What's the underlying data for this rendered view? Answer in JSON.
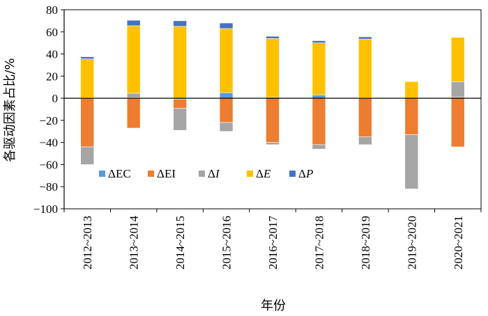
{
  "chart_data": {
    "type": "bar",
    "stacked": true,
    "xlabel": "年份",
    "ylabel": "各驱动因素占比/%",
    "ylim": [
      -100,
      80
    ],
    "yticks": [
      -100,
      -80,
      -60,
      -40,
      -20,
      0,
      20,
      40,
      60,
      80
    ],
    "grid": false,
    "legend_position": "lower-left",
    "categories": [
      "2012~2013",
      "2013~2014",
      "2014~2015",
      "2015~2016",
      "2016~2017",
      "2017~2018",
      "2018~2019",
      "2019~2020",
      "2020~2021"
    ],
    "series": [
      {
        "name": "ΔEC",
        "prefix": "Δ",
        "suffix": "EC",
        "italic": false,
        "color": "#5b9bd5",
        "values": [
          0.5,
          0.5,
          -1,
          5,
          1,
          3,
          0.5,
          0,
          1
        ]
      },
      {
        "name": "ΔEI",
        "prefix": "Δ",
        "suffix": "EI",
        "italic": false,
        "color": "#ed7d31",
        "values": [
          -44,
          -27,
          -8,
          -22,
          -40,
          -42,
          -35,
          -33,
          -44
        ]
      },
      {
        "name": "ΔI",
        "prefix": "Δ",
        "suffix": "I",
        "italic": true,
        "color": "#a5a5a5",
        "values": [
          -16,
          4,
          -20,
          -8,
          -2,
          -4,
          -7,
          -49,
          14
        ]
      },
      {
        "name": "ΔE",
        "prefix": "Δ",
        "suffix": "E",
        "italic": true,
        "color": "#ffc000",
        "values": [
          35,
          61,
          65,
          58,
          53,
          47,
          53,
          15,
          40
        ]
      },
      {
        "name": "ΔP",
        "prefix": "Δ",
        "suffix": "P",
        "italic": true,
        "color": "#4472c4",
        "values": [
          2,
          5,
          5,
          5,
          2,
          2,
          2,
          0,
          0
        ]
      }
    ]
  }
}
